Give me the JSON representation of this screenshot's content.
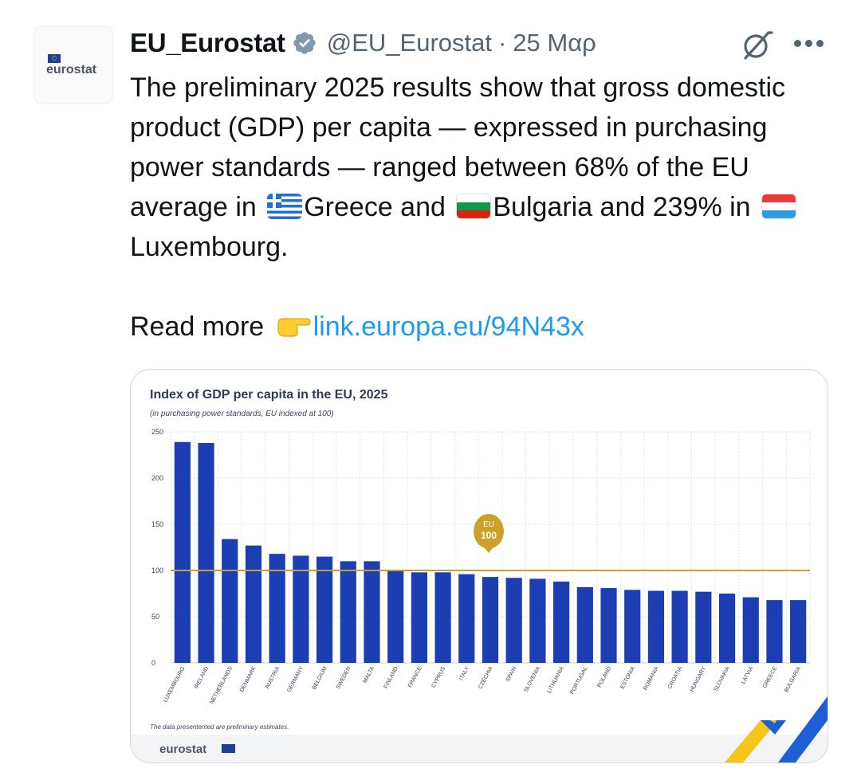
{
  "tweet": {
    "author_name": "EU_Eurostat",
    "handle": "@EU_Eurostat",
    "separator": "·",
    "date": "25 Μαρ",
    "avatar_text": "eurostat",
    "text_line1": "The preliminary 2025 results show that gross domestic product (GDP) per capita — expressed in purchasing power standards  — ranged between 68% of the EU average in ",
    "text_greece": "Greece and ",
    "text_bulgaria": "Bulgaria and 239% in ",
    "text_luxembourg": "Luxembourg.",
    "read_more": "Read more ",
    "link": "link.europa.eu/94N43x",
    "icons": {
      "verified": "verified-badge-icon",
      "grok": "grok-icon",
      "more": "more-options-icon",
      "greece_flag": "greece-flag-icon",
      "bulgaria_flag": "bulgaria-flag-icon",
      "luxembourg_flag": "luxembourg-flag-icon",
      "pointing": "backhand-index-pointing-right-icon"
    }
  },
  "chart_data": {
    "type": "bar",
    "title": "Index of GDP per capita in the EU, 2025",
    "subtitle": "(in purchasing power standards, EU indexed at 100)",
    "xlabel": "",
    "ylabel": "",
    "ylim": [
      0,
      250
    ],
    "yticks": [
      0,
      50,
      100,
      150,
      200,
      250
    ],
    "grid": true,
    "categories": [
      "LUXEMBOURG",
      "IRELAND",
      "NETHERLANDS",
      "DENMARK",
      "AUSTRIA",
      "GERMANY",
      "BELGIUM",
      "SWEDEN",
      "MALTA",
      "FINLAND",
      "FRANCE",
      "CYPRUS",
      "ITALY",
      "CZECHIA",
      "SPAIN",
      "SLOVENIA",
      "LITHUANIA",
      "PORTUGAL",
      "POLAND",
      "ESTONIA",
      "ROMANIA",
      "CROATIA",
      "HUNGARY",
      "SLOVAKIA",
      "LATVIA",
      "GREECE",
      "BULGARIA"
    ],
    "values": [
      239,
      238,
      134,
      127,
      118,
      116,
      115,
      110,
      110,
      100,
      98,
      98,
      96,
      93,
      92,
      91,
      88,
      82,
      81,
      79,
      78,
      78,
      77,
      75,
      71,
      68,
      68
    ],
    "reference_line": {
      "value": 100,
      "label_top": "EU",
      "label_bottom": "100"
    },
    "footnote": "The data presentented are preliminary estimates.",
    "brand": "eurostat",
    "colors": {
      "bar": "#1b3fb3",
      "reference": "#c9a227",
      "brand_text": "#2f3b55",
      "accent_yellow": "#f5c518",
      "accent_blue": "#1f5fd6"
    }
  }
}
